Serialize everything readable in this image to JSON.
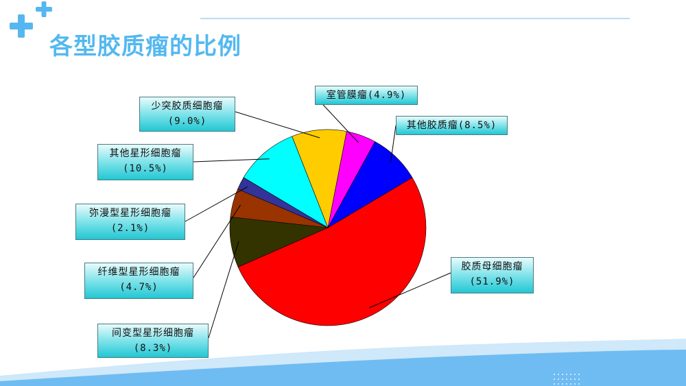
{
  "slide": {
    "title": "各型胶质瘤的比例"
  },
  "chart_data": {
    "type": "pie",
    "title": "",
    "slices": [
      {
        "name": "胶质母细胞瘤",
        "pct_label": "(51.9%)",
        "value": 51.9,
        "color": "#ff0000"
      },
      {
        "name": "间变型星形细胞瘤",
        "pct_label": "(8.3%)",
        "value": 8.3,
        "color": "#333300"
      },
      {
        "name": "纤维型星形细胞瘤",
        "pct_label": "(4.7%)",
        "value": 4.7,
        "color": "#993300"
      },
      {
        "name": "弥漫型星形细胞瘤",
        "pct_label": "(2.1%)",
        "value": 2.1,
        "color": "#333399"
      },
      {
        "name": "其他星形细胞瘤",
        "pct_label": "(10.5%)",
        "value": 10.5,
        "color": "#00ffff"
      },
      {
        "name": "少突胶质细胞瘤",
        "pct_label": "(9.0%)",
        "value": 9.0,
        "color": "#ffcc00"
      },
      {
        "name": "室管膜瘤",
        "pct_label": "(4.9%)",
        "value": 4.9,
        "color": "#ff00ff"
      },
      {
        "name": "其他胶质瘤",
        "pct_label": "(8.5%)",
        "value": 8.5,
        "color": "#0000ff"
      }
    ]
  }
}
